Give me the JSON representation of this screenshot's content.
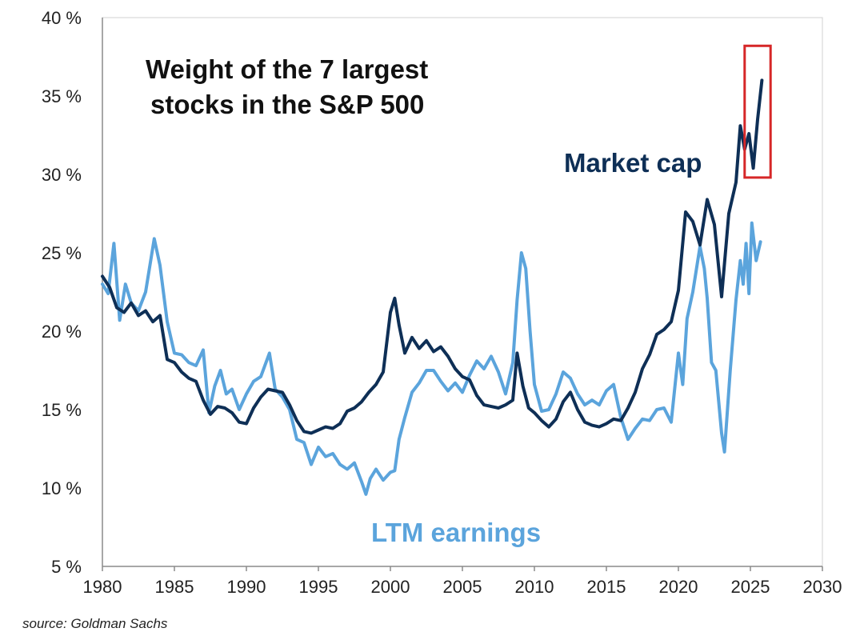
{
  "chart_data": {
    "type": "line",
    "title_lines": [
      "Weight of the 7 largest",
      "stocks in the S&P 500"
    ],
    "xlabel": "",
    "ylabel": "",
    "xlim": [
      1980,
      2030
    ],
    "ylim": [
      5,
      40
    ],
    "x_ticks": [
      1980,
      1985,
      1990,
      1995,
      2000,
      2005,
      2010,
      2015,
      2020,
      2025,
      2030
    ],
    "y_ticks": [
      5,
      10,
      15,
      20,
      25,
      30,
      35,
      40
    ],
    "y_tick_labels": [
      "5 %",
      "10 %",
      "15 %",
      "20 %",
      "25 %",
      "30 %",
      "35 %",
      "40 %"
    ],
    "grid": false,
    "highlight_box": {
      "x": [
        2024.6,
        2026.4
      ],
      "y": [
        29.8,
        38.2
      ],
      "color": "#d62728"
    },
    "series": [
      {
        "name": "Market cap",
        "color": "#0e2f56",
        "points": [
          [
            1980.0,
            23.5
          ],
          [
            1980.5,
            22.8
          ],
          [
            1981.0,
            21.5
          ],
          [
            1981.5,
            21.2
          ],
          [
            1982.0,
            21.8
          ],
          [
            1982.5,
            21.0
          ],
          [
            1983.0,
            21.3
          ],
          [
            1983.5,
            20.6
          ],
          [
            1984.0,
            21.0
          ],
          [
            1984.5,
            18.2
          ],
          [
            1985.0,
            18.0
          ],
          [
            1985.5,
            17.4
          ],
          [
            1986.0,
            17.0
          ],
          [
            1986.5,
            16.8
          ],
          [
            1987.0,
            15.6
          ],
          [
            1987.5,
            14.7
          ],
          [
            1988.0,
            15.2
          ],
          [
            1988.5,
            15.1
          ],
          [
            1989.0,
            14.8
          ],
          [
            1989.5,
            14.2
          ],
          [
            1990.0,
            14.1
          ],
          [
            1990.5,
            15.1
          ],
          [
            1991.0,
            15.8
          ],
          [
            1991.5,
            16.3
          ],
          [
            1992.0,
            16.2
          ],
          [
            1992.5,
            16.1
          ],
          [
            1993.0,
            15.3
          ],
          [
            1993.5,
            14.3
          ],
          [
            1994.0,
            13.6
          ],
          [
            1994.5,
            13.5
          ],
          [
            1995.0,
            13.7
          ],
          [
            1995.5,
            13.9
          ],
          [
            1996.0,
            13.8
          ],
          [
            1996.5,
            14.1
          ],
          [
            1997.0,
            14.9
          ],
          [
            1997.5,
            15.1
          ],
          [
            1998.0,
            15.5
          ],
          [
            1998.5,
            16.1
          ],
          [
            1999.0,
            16.6
          ],
          [
            1999.5,
            17.4
          ],
          [
            2000.0,
            21.2
          ],
          [
            2000.3,
            22.1
          ],
          [
            2000.6,
            20.4
          ],
          [
            2001.0,
            18.6
          ],
          [
            2001.5,
            19.6
          ],
          [
            2002.0,
            18.9
          ],
          [
            2002.5,
            19.4
          ],
          [
            2003.0,
            18.7
          ],
          [
            2003.5,
            19.0
          ],
          [
            2004.0,
            18.4
          ],
          [
            2004.5,
            17.6
          ],
          [
            2005.0,
            17.1
          ],
          [
            2005.5,
            16.9
          ],
          [
            2006.0,
            15.9
          ],
          [
            2006.5,
            15.3
          ],
          [
            2007.0,
            15.2
          ],
          [
            2007.5,
            15.1
          ],
          [
            2008.0,
            15.3
          ],
          [
            2008.5,
            15.6
          ],
          [
            2008.8,
            18.6
          ],
          [
            2009.2,
            16.5
          ],
          [
            2009.6,
            15.1
          ],
          [
            2010.0,
            14.8
          ],
          [
            2010.5,
            14.3
          ],
          [
            2011.0,
            13.9
          ],
          [
            2011.5,
            14.4
          ],
          [
            2012.0,
            15.5
          ],
          [
            2012.5,
            16.1
          ],
          [
            2013.0,
            15.0
          ],
          [
            2013.5,
            14.2
          ],
          [
            2014.0,
            14.0
          ],
          [
            2014.5,
            13.9
          ],
          [
            2015.0,
            14.1
          ],
          [
            2015.5,
            14.4
          ],
          [
            2016.0,
            14.3
          ],
          [
            2016.5,
            15.1
          ],
          [
            2017.0,
            16.1
          ],
          [
            2017.5,
            17.6
          ],
          [
            2018.0,
            18.5
          ],
          [
            2018.5,
            19.8
          ],
          [
            2019.0,
            20.1
          ],
          [
            2019.5,
            20.6
          ],
          [
            2020.0,
            22.6
          ],
          [
            2020.5,
            27.6
          ],
          [
            2021.0,
            27.0
          ],
          [
            2021.5,
            25.5
          ],
          [
            2022.0,
            28.4
          ],
          [
            2022.5,
            26.8
          ],
          [
            2023.0,
            22.2
          ],
          [
            2023.5,
            27.5
          ],
          [
            2024.0,
            29.5
          ],
          [
            2024.3,
            33.1
          ],
          [
            2024.6,
            31.6
          ],
          [
            2024.9,
            32.6
          ],
          [
            2025.2,
            30.4
          ],
          [
            2025.5,
            33.5
          ],
          [
            2025.8,
            36.0
          ]
        ]
      },
      {
        "name": "LTM earnings",
        "color": "#5ba4dc",
        "points": [
          [
            1980.0,
            23.0
          ],
          [
            1980.4,
            22.4
          ],
          [
            1980.8,
            25.6
          ],
          [
            1981.2,
            20.7
          ],
          [
            1981.6,
            23.0
          ],
          [
            1982.0,
            21.8
          ],
          [
            1982.5,
            21.3
          ],
          [
            1983.0,
            22.5
          ],
          [
            1983.6,
            25.9
          ],
          [
            1984.0,
            24.2
          ],
          [
            1984.5,
            20.6
          ],
          [
            1985.0,
            18.6
          ],
          [
            1985.5,
            18.5
          ],
          [
            1986.0,
            18.0
          ],
          [
            1986.5,
            17.8
          ],
          [
            1987.0,
            18.8
          ],
          [
            1987.4,
            14.8
          ],
          [
            1987.8,
            16.5
          ],
          [
            1988.2,
            17.5
          ],
          [
            1988.6,
            16.0
          ],
          [
            1989.0,
            16.3
          ],
          [
            1989.5,
            15.0
          ],
          [
            1990.0,
            16.0
          ],
          [
            1990.5,
            16.8
          ],
          [
            1991.0,
            17.1
          ],
          [
            1991.6,
            18.6
          ],
          [
            1992.0,
            16.3
          ],
          [
            1992.5,
            15.8
          ],
          [
            1993.0,
            15.0
          ],
          [
            1993.5,
            13.1
          ],
          [
            1994.0,
            12.9
          ],
          [
            1994.5,
            11.5
          ],
          [
            1995.0,
            12.6
          ],
          [
            1995.5,
            12.0
          ],
          [
            1996.0,
            12.2
          ],
          [
            1996.5,
            11.5
          ],
          [
            1997.0,
            11.2
          ],
          [
            1997.5,
            11.6
          ],
          [
            1998.0,
            10.4
          ],
          [
            1998.3,
            9.6
          ],
          [
            1998.6,
            10.6
          ],
          [
            1999.0,
            11.2
          ],
          [
            1999.5,
            10.5
          ],
          [
            2000.0,
            11.0
          ],
          [
            2000.3,
            11.1
          ],
          [
            2000.6,
            13.1
          ],
          [
            2001.0,
            14.5
          ],
          [
            2001.5,
            16.1
          ],
          [
            2002.0,
            16.7
          ],
          [
            2002.5,
            17.5
          ],
          [
            2003.0,
            17.5
          ],
          [
            2003.5,
            16.8
          ],
          [
            2004.0,
            16.2
          ],
          [
            2004.5,
            16.7
          ],
          [
            2005.0,
            16.1
          ],
          [
            2005.5,
            17.2
          ],
          [
            2006.0,
            18.1
          ],
          [
            2006.5,
            17.6
          ],
          [
            2007.0,
            18.4
          ],
          [
            2007.5,
            17.4
          ],
          [
            2008.0,
            16.0
          ],
          [
            2008.5,
            18.0
          ],
          [
            2008.8,
            22.0
          ],
          [
            2009.1,
            25.0
          ],
          [
            2009.4,
            24.0
          ],
          [
            2009.7,
            20.0
          ],
          [
            2010.0,
            16.6
          ],
          [
            2010.5,
            14.9
          ],
          [
            2011.0,
            15.0
          ],
          [
            2011.5,
            16.0
          ],
          [
            2012.0,
            17.4
          ],
          [
            2012.5,
            17.0
          ],
          [
            2013.0,
            16.0
          ],
          [
            2013.5,
            15.3
          ],
          [
            2014.0,
            15.6
          ],
          [
            2014.5,
            15.3
          ],
          [
            2015.0,
            16.2
          ],
          [
            2015.5,
            16.6
          ],
          [
            2016.0,
            14.5
          ],
          [
            2016.5,
            13.1
          ],
          [
            2017.0,
            13.8
          ],
          [
            2017.5,
            14.4
          ],
          [
            2018.0,
            14.3
          ],
          [
            2018.5,
            15.0
          ],
          [
            2019.0,
            15.1
          ],
          [
            2019.5,
            14.2
          ],
          [
            2020.0,
            18.6
          ],
          [
            2020.3,
            16.6
          ],
          [
            2020.6,
            20.8
          ],
          [
            2021.0,
            22.5
          ],
          [
            2021.5,
            25.4
          ],
          [
            2021.8,
            24.0
          ],
          [
            2022.0,
            22.1
          ],
          [
            2022.3,
            18.0
          ],
          [
            2022.6,
            17.5
          ],
          [
            2023.0,
            13.5
          ],
          [
            2023.2,
            12.3
          ],
          [
            2023.6,
            17.5
          ],
          [
            2024.0,
            22.0
          ],
          [
            2024.3,
            24.5
          ],
          [
            2024.5,
            23.0
          ],
          [
            2024.7,
            25.6
          ],
          [
            2024.9,
            22.4
          ],
          [
            2025.1,
            26.9
          ],
          [
            2025.4,
            24.5
          ],
          [
            2025.7,
            25.7
          ]
        ]
      }
    ],
    "annotations": [
      {
        "text": "Market cap",
        "series": 0
      },
      {
        "text": "LTM earnings",
        "series": 1
      }
    ]
  },
  "source_text": "source: Goldman Sachs"
}
